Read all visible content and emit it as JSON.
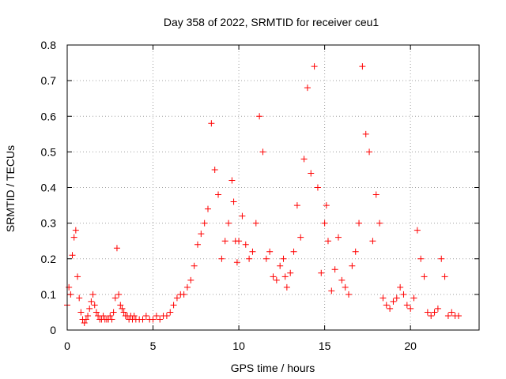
{
  "chart_data": {
    "type": "scatter",
    "title": "Day 358 of 2022, SRMTID for receiver ceu1",
    "xlabel": "GPS time / hours",
    "ylabel": "SRMTID / TECUs",
    "xlim": [
      0,
      24
    ],
    "ylim": [
      0,
      0.8
    ],
    "x_ticks": [
      "0",
      "5",
      "10",
      "15",
      "20"
    ],
    "y_ticks": [
      "0",
      "0.1",
      "0.2",
      "0.3",
      "0.4",
      "0.5",
      "0.6",
      "0.7",
      "0.8"
    ],
    "grid": true,
    "marker": "+",
    "series": [
      {
        "name": "ceu1",
        "color": "#ff0000",
        "x": [
          0.0,
          0.1,
          0.2,
          0.3,
          0.4,
          0.5,
          0.6,
          0.7,
          0.8,
          0.9,
          1.0,
          1.1,
          1.2,
          1.3,
          1.4,
          1.5,
          1.6,
          1.7,
          1.8,
          1.9,
          2.0,
          2.1,
          2.2,
          2.3,
          2.4,
          2.5,
          2.6,
          2.7,
          2.8,
          2.9,
          3.0,
          3.1,
          3.2,
          3.3,
          3.4,
          3.5,
          3.6,
          3.7,
          3.8,
          3.9,
          4.0,
          4.2,
          4.4,
          4.6,
          4.8,
          5.0,
          5.2,
          5.4,
          5.6,
          5.8,
          6.0,
          6.2,
          6.4,
          6.6,
          6.8,
          7.0,
          7.2,
          7.4,
          7.6,
          7.8,
          8.0,
          8.2,
          8.4,
          8.6,
          8.8,
          9.0,
          9.2,
          9.4,
          9.6,
          9.7,
          9.8,
          9.9,
          10.0,
          10.2,
          10.4,
          10.6,
          10.8,
          11.0,
          11.2,
          11.4,
          11.6,
          11.8,
          12.0,
          12.2,
          12.4,
          12.6,
          12.7,
          12.8,
          13.0,
          13.2,
          13.4,
          13.6,
          13.8,
          14.0,
          14.2,
          14.4,
          14.6,
          14.8,
          15.0,
          15.1,
          15.2,
          15.4,
          15.6,
          15.8,
          16.0,
          16.2,
          16.4,
          16.6,
          16.8,
          17.0,
          17.2,
          17.4,
          17.6,
          17.8,
          18.0,
          18.2,
          18.4,
          18.6,
          18.8,
          19.0,
          19.2,
          19.4,
          19.6,
          19.8,
          20.0,
          20.2,
          20.4,
          20.6,
          20.8,
          21.0,
          21.2,
          21.4,
          21.6,
          21.8,
          22.0,
          22.2,
          22.4,
          22.6,
          22.8
        ],
        "y": [
          0.07,
          0.12,
          0.1,
          0.21,
          0.26,
          0.28,
          0.15,
          0.09,
          0.05,
          0.03,
          0.02,
          0.03,
          0.04,
          0.06,
          0.08,
          0.1,
          0.07,
          0.05,
          0.04,
          0.03,
          0.03,
          0.04,
          0.03,
          0.03,
          0.03,
          0.04,
          0.03,
          0.05,
          0.09,
          0.23,
          0.1,
          0.07,
          0.06,
          0.05,
          0.04,
          0.04,
          0.03,
          0.04,
          0.03,
          0.04,
          0.03,
          0.03,
          0.03,
          0.04,
          0.03,
          0.03,
          0.04,
          0.03,
          0.04,
          0.04,
          0.05,
          0.07,
          0.09,
          0.1,
          0.1,
          0.12,
          0.14,
          0.18,
          0.24,
          0.27,
          0.3,
          0.34,
          0.58,
          0.45,
          0.38,
          0.2,
          0.25,
          0.3,
          0.42,
          0.36,
          0.25,
          0.19,
          0.25,
          0.32,
          0.24,
          0.2,
          0.22,
          0.3,
          0.6,
          0.5,
          0.2,
          0.22,
          0.15,
          0.14,
          0.18,
          0.2,
          0.15,
          0.12,
          0.16,
          0.22,
          0.35,
          0.26,
          0.48,
          0.68,
          0.44,
          0.74,
          0.4,
          0.16,
          0.3,
          0.35,
          0.25,
          0.11,
          0.17,
          0.26,
          0.14,
          0.12,
          0.1,
          0.18,
          0.22,
          0.3,
          0.74,
          0.55,
          0.5,
          0.25,
          0.38,
          0.3,
          0.09,
          0.07,
          0.06,
          0.08,
          0.09,
          0.12,
          0.1,
          0.07,
          0.06,
          0.09,
          0.28,
          0.2,
          0.15,
          0.05,
          0.04,
          0.05,
          0.06,
          0.2,
          0.15,
          0.04,
          0.05,
          0.04,
          0.04
        ]
      }
    ]
  }
}
